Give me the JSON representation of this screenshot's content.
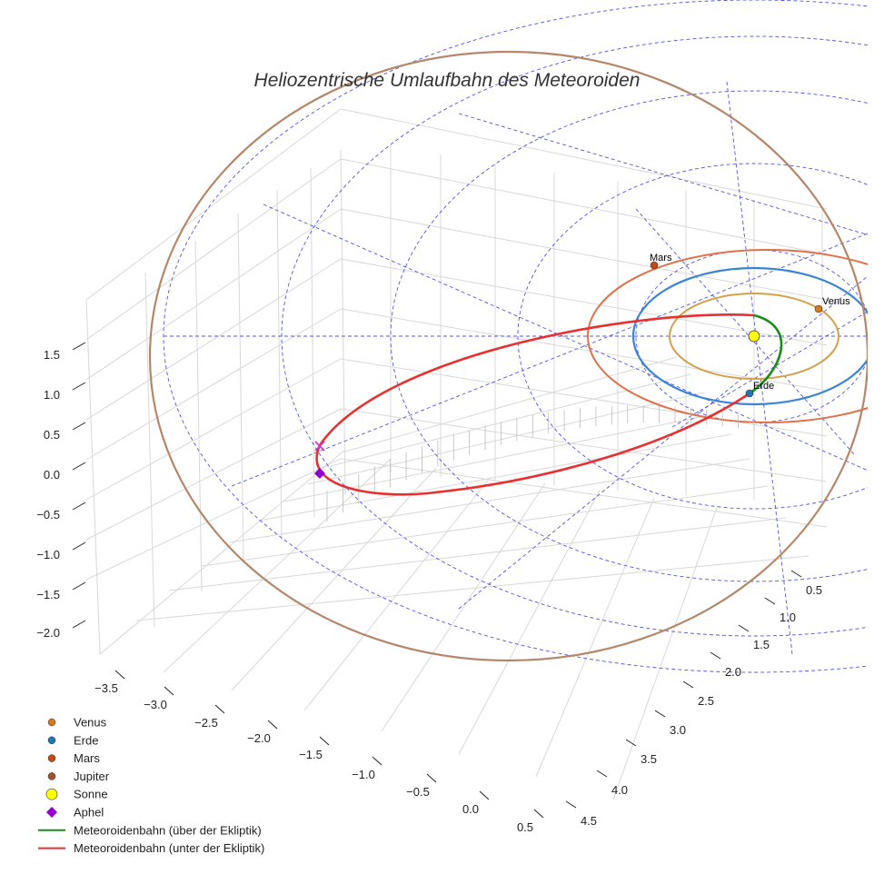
{
  "chart_data": {
    "type": "3d-orbit",
    "title": "Heliozentrische Umlaufbahn des Meteoroiden",
    "axes": {
      "x": {
        "ticks": [
          "−3.5",
          "−3.0",
          "−2.5",
          "−2.0",
          "−1.5",
          "−1.0",
          "−0.5",
          "0.0",
          "0.5"
        ],
        "range": [
          -3.6,
          0.6
        ]
      },
      "y": {
        "ticks": [
          "0.5",
          "1.0",
          "1.5",
          "2.0",
          "2.5",
          "3.0",
          "3.5",
          "4.0",
          "4.5"
        ],
        "range": [
          0.3,
          4.6
        ]
      },
      "z": {
        "ticks": [
          "1.5",
          "1.0",
          "0.5",
          "0.0",
          "−0.5",
          "−1.0",
          "−1.5",
          "−2.0"
        ],
        "range": [
          -2.3,
          1.9
        ]
      },
      "grid": true
    },
    "planets": [
      {
        "name": "Venus",
        "label": "Venus",
        "color": "#d4a04a",
        "marker": "#d4791c",
        "orbit_au": 0.72
      },
      {
        "name": "Erde",
        "label": "Erde",
        "color": "#3a84d6",
        "marker": "#1f77b4",
        "orbit_au": 1.0
      },
      {
        "name": "Mars",
        "label": "Mars",
        "color": "#e0704a",
        "marker": "#c44a14",
        "orbit_au": 1.52
      },
      {
        "name": "Jupiter",
        "label": "",
        "color": "#b5876a",
        "marker": "#a0522d",
        "orbit_au": 5.2
      }
    ],
    "sun": {
      "name": "Sonne",
      "color": "#ffff00"
    },
    "aphel": {
      "name": "Aphel",
      "color": "#9400d3"
    },
    "meteoroid": {
      "above": {
        "name": "Meteoroidenbahn (über der Ekliptik)",
        "color": "#1a8a1a"
      },
      "below": {
        "name": "Meteoroidenbahn (unter der Ekliptik)",
        "color": "#e83030"
      }
    },
    "legend_position": "bottom-left"
  },
  "legend": [
    {
      "label": "Venus",
      "kind": "dot",
      "color": "#d4791c"
    },
    {
      "label": "Erde",
      "kind": "dot",
      "color": "#1f77b4"
    },
    {
      "label": "Mars",
      "kind": "dot",
      "color": "#c44a14"
    },
    {
      "label": "Jupiter",
      "kind": "dot",
      "color": "#a0522d"
    },
    {
      "label": "Sonne",
      "kind": "sun",
      "color": "#ffff00"
    },
    {
      "label": "Aphel",
      "kind": "diamond",
      "color": "#9400d3"
    },
    {
      "label": "Meteoroidenbahn (über der Ekliptik)",
      "kind": "line",
      "color": "#1a8a1a"
    },
    {
      "label": "Meteoroidenbahn (unter der Ekliptik)",
      "kind": "line",
      "color": "#e83030"
    }
  ]
}
